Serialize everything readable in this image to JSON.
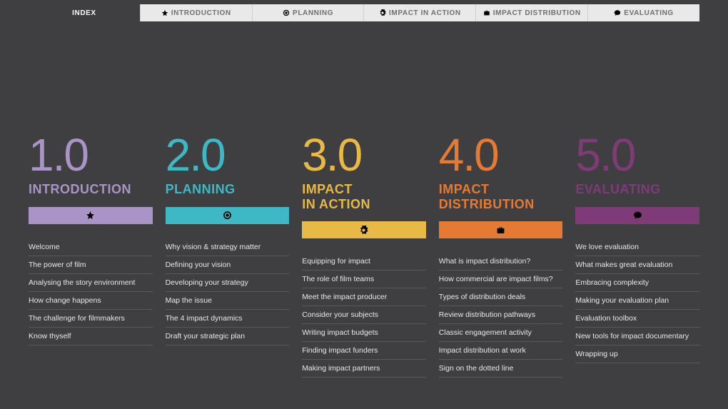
{
  "nav": {
    "index_label": "INDEX",
    "items": [
      {
        "label": "INTRODUCTION",
        "icon": "star"
      },
      {
        "label": "PLANNING",
        "icon": "target"
      },
      {
        "label": "IMPACT IN ACTION",
        "icon": "gear"
      },
      {
        "label": "IMPACT DISTRIBUTION",
        "icon": "briefcase"
      },
      {
        "label": "EVALUATING",
        "icon": "speech"
      }
    ]
  },
  "columns": [
    {
      "number": "1.0",
      "title": "INTRODUCTION",
      "color": "#a993c7",
      "bar_color": "#a993c7",
      "icon": "star",
      "items": [
        "Welcome",
        "The power of film",
        "Analysing the story environment",
        "How change happens",
        "The challenge for filmmakers",
        "Know thyself"
      ]
    },
    {
      "number": "2.0",
      "title": "PLANNING",
      "color": "#3fb8c6",
      "bar_color": "#3fb8c6",
      "icon": "target",
      "items": [
        "Why vision & strategy matter",
        "Defining your vision",
        "Developing your strategy",
        "Map the issue",
        "The 4 impact dynamics",
        "Draft your strategic plan"
      ]
    },
    {
      "number": "3.0",
      "title": "IMPACT\nIN ACTION",
      "color": "#e8b944",
      "bar_color": "#e8b944",
      "icon": "gear",
      "items": [
        "Equipping for impact",
        "The role of film teams",
        "Meet the impact producer",
        "Consider your subjects",
        "Writing impact budgets",
        "Finding impact funders",
        "Making impact partners"
      ]
    },
    {
      "number": "4.0",
      "title": "IMPACT\nDISTRIBUTION",
      "color": "#e57a33",
      "bar_color": "#e57a33",
      "icon": "briefcase",
      "items": [
        "What is impact distribution?",
        "How commercial are impact films?",
        "Types of distribution deals",
        "Review distribution pathways",
        "Classic engagement activity",
        "Impact distribution at work",
        "Sign on the dotted line"
      ]
    },
    {
      "number": "5.0",
      "title": "EVALUATING",
      "color": "#7f3a78",
      "bar_color": "#7f3a78",
      "icon": "speech",
      "items": [
        "We love evaluation",
        "What makes great evaluation",
        "Embracing complexity",
        "Making your evaluation plan",
        "Evaluation toolbox",
        "New tools for impact documentary",
        "Wrapping up"
      ]
    }
  ]
}
